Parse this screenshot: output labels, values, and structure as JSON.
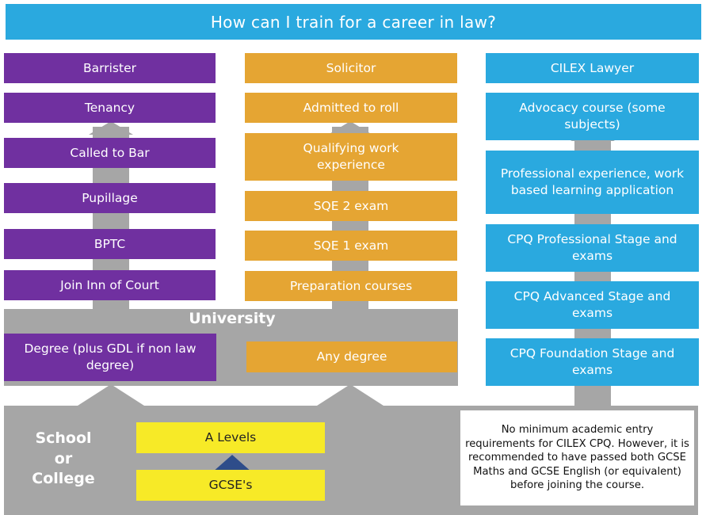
{
  "title": "How can I train for a career in law?",
  "barrister": {
    "header": "Barrister",
    "steps": [
      "Tenancy",
      "Called to Bar",
      "Pupillage",
      "BPTC",
      "Join Inn of Court"
    ],
    "degree": "Degree (plus GDL if non law degree)"
  },
  "solicitor": {
    "header": "Solicitor",
    "steps": [
      "Admitted to roll",
      "Qualifying work experience",
      "SQE 2 exam",
      "SQE 1 exam",
      "Preparation courses"
    ],
    "degree": "Any degree"
  },
  "cilex": {
    "header": "CILEX Lawyer",
    "steps": [
      "Advocacy course (some subjects)",
      "Professional experience, work based learning application",
      "CPQ Professional Stage and exams",
      "CPQ Advanced Stage and exams",
      "CPQ Foundation Stage and exams"
    ],
    "note": "No minimum academic entry requirements for CILEX CPQ. However, it is recommended to have passed both GCSE Maths and GCSE English (or equivalent) before joining the course."
  },
  "university": {
    "label": "University"
  },
  "school": {
    "label_lines": [
      "School",
      "or",
      "College"
    ],
    "a_levels": "A Levels",
    "gcse": "GCSE's"
  },
  "colors": {
    "purple": "#7030a0",
    "orange": "#e5a533",
    "blue": "#2aa9df",
    "yellow": "#f7ea27",
    "grey": "#a6a6a6"
  }
}
